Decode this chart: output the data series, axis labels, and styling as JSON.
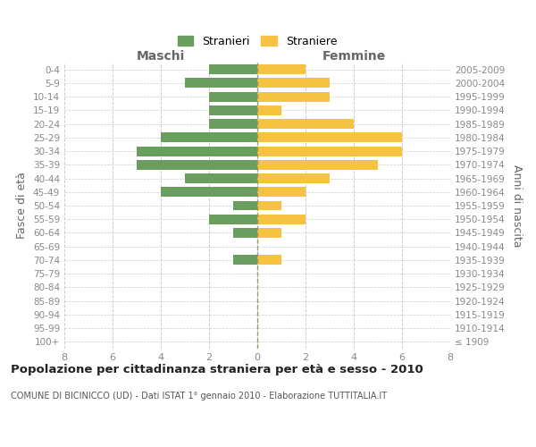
{
  "age_groups": [
    "100+",
    "95-99",
    "90-94",
    "85-89",
    "80-84",
    "75-79",
    "70-74",
    "65-69",
    "60-64",
    "55-59",
    "50-54",
    "45-49",
    "40-44",
    "35-39",
    "30-34",
    "25-29",
    "20-24",
    "15-19",
    "10-14",
    "5-9",
    "0-4"
  ],
  "birth_years": [
    "≤ 1909",
    "1910-1914",
    "1915-1919",
    "1920-1924",
    "1925-1929",
    "1930-1934",
    "1935-1939",
    "1940-1944",
    "1945-1949",
    "1950-1954",
    "1955-1959",
    "1960-1964",
    "1965-1969",
    "1970-1974",
    "1975-1979",
    "1980-1984",
    "1985-1989",
    "1990-1994",
    "1995-1999",
    "2000-2004",
    "2005-2009"
  ],
  "males": [
    0,
    0,
    0,
    0,
    0,
    0,
    1,
    0,
    1,
    2,
    1,
    4,
    3,
    5,
    5,
    4,
    2,
    2,
    2,
    3,
    2
  ],
  "females": [
    0,
    0,
    0,
    0,
    0,
    0,
    1,
    0,
    1,
    2,
    1,
    2,
    3,
    5,
    6,
    6,
    4,
    1,
    3,
    3,
    2
  ],
  "male_color": "#6a9e5e",
  "female_color": "#f5c242",
  "grid_color": "#cccccc",
  "center_line_color": "#999966",
  "tick_label_color": "#888888",
  "axis_label_color": "#666666",
  "title": "Popolazione per cittadinanza straniera per età e sesso - 2010",
  "subtitle": "COMUNE DI BICINICCO (UD) - Dati ISTAT 1° gennaio 2010 - Elaborazione TUTTITALIA.IT",
  "ylabel_left": "Fasce di età",
  "ylabel_right": "Anni di nascita",
  "xlim": 8,
  "tick_positions": [
    -8,
    -6,
    -4,
    -2,
    0,
    2,
    4,
    6,
    8
  ],
  "tick_labels": [
    "8",
    "6",
    "4",
    "2",
    "0",
    "2",
    "4",
    "6",
    "8"
  ],
  "legend_male": "Stranieri",
  "legend_female": "Straniere",
  "header_male": "Maschi",
  "header_female": "Femmine"
}
